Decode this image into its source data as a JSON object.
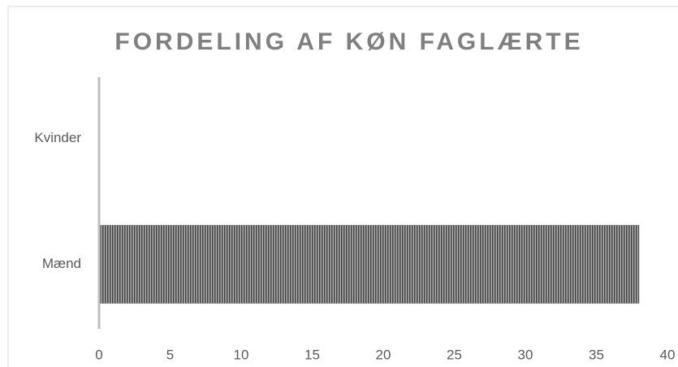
{
  "chart_data": {
    "type": "bar",
    "orientation": "horizontal",
    "title": "FORDELING AF KØN FAGLÆRTE",
    "categories": [
      "Kvinder",
      "Mænd"
    ],
    "values": [
      0,
      38
    ],
    "color": "#6f6f6f",
    "xlim": [
      0,
      40
    ],
    "xticks": [
      0,
      5,
      10,
      15,
      20,
      25,
      30,
      35,
      40
    ],
    "grid": false
  }
}
